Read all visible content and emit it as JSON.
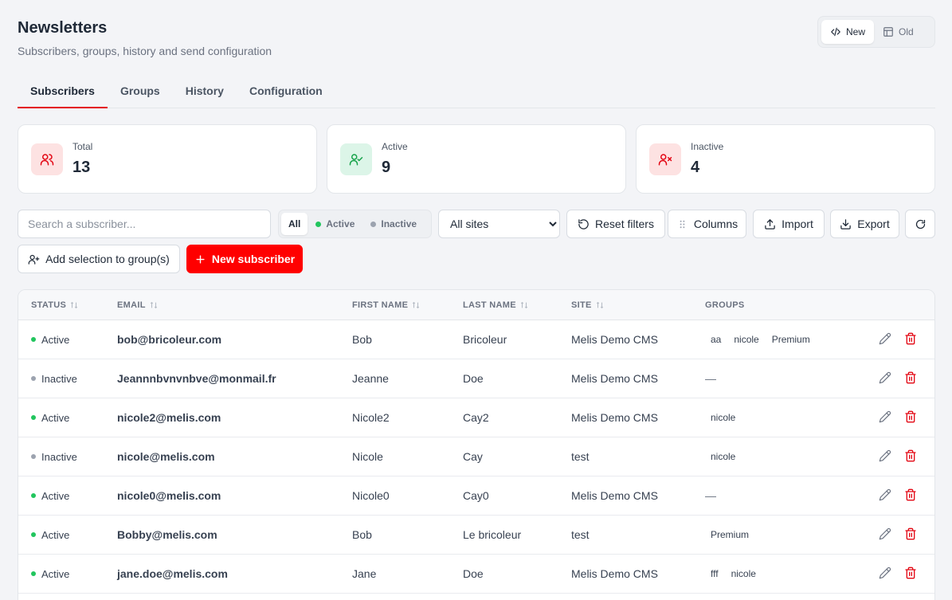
{
  "header": {
    "title": "Newsletters",
    "subtitle": "Subscribers, groups, history and send configuration"
  },
  "version_toggle": {
    "new_label": "New",
    "old_label": "Old"
  },
  "tabs": [
    {
      "label": "Subscribers",
      "active": true
    },
    {
      "label": "Groups"
    },
    {
      "label": "History"
    },
    {
      "label": "Configuration"
    }
  ],
  "stats": [
    {
      "label": "Total",
      "value": "13",
      "icon": "users-icon"
    },
    {
      "label": "Active",
      "value": "9",
      "icon": "user-check-icon"
    },
    {
      "label": "Inactive",
      "value": "4",
      "icon": "user-x-icon"
    }
  ],
  "colors": {
    "accent": "#ff0000",
    "active_dot": "#22c55e",
    "inactive_dot": "#9ca3af",
    "danger": "#e30613"
  },
  "filters": {
    "search_placeholder": "Search a subscriber...",
    "status": {
      "all": "All",
      "active": "Active",
      "inactive": "Inactive",
      "selected": "All"
    },
    "site_selected": "All sites",
    "reset_label": "Reset filters",
    "columns_label": "Columns",
    "import_label": "Import",
    "export_label": "Export",
    "add_to_group_label": "Add selection to group(s)",
    "new_subscriber_label": "New subscriber"
  },
  "table": {
    "headers": {
      "status": "STATUS",
      "email": "EMAIL",
      "first_name": "FIRST NAME",
      "last_name": "LAST NAME",
      "site": "SITE",
      "groups": "GROUPS"
    },
    "rows": [
      {
        "status": "Active",
        "email": "bob@bricoleur.com",
        "first_name": "Bob",
        "last_name": "Bricoleur",
        "site": "Melis Demo CMS",
        "groups": [
          "aa",
          "nicole",
          "Premium"
        ]
      },
      {
        "status": "Inactive",
        "email": "Jeannnbvnvnbve@monmail.fr",
        "first_name": "Jeanne",
        "last_name": "Doe",
        "site": "Melis Demo CMS",
        "groups": []
      },
      {
        "status": "Active",
        "email": "nicole2@melis.com",
        "first_name": "Nicole2",
        "last_name": "Cay2",
        "site": "Melis Demo CMS",
        "groups": [
          "nicole"
        ]
      },
      {
        "status": "Inactive",
        "email": "nicole@melis.com",
        "first_name": "Nicole",
        "last_name": "Cay",
        "site": "test",
        "groups": [
          "nicole"
        ]
      },
      {
        "status": "Active",
        "email": "nicole0@melis.com",
        "first_name": "Nicole0",
        "last_name": "Cay0",
        "site": "Melis Demo CMS",
        "groups": []
      },
      {
        "status": "Active",
        "email": "Bobby@melis.com",
        "first_name": "Bob",
        "last_name": "Le bricoleur",
        "site": "test",
        "groups": [
          "Premium"
        ]
      },
      {
        "status": "Active",
        "email": "jane.doe@melis.com",
        "first_name": "Jane",
        "last_name": "Doe",
        "site": "Melis Demo CMS",
        "groups": [
          "fff",
          "nicole"
        ]
      }
    ],
    "empty_groups": "—"
  }
}
